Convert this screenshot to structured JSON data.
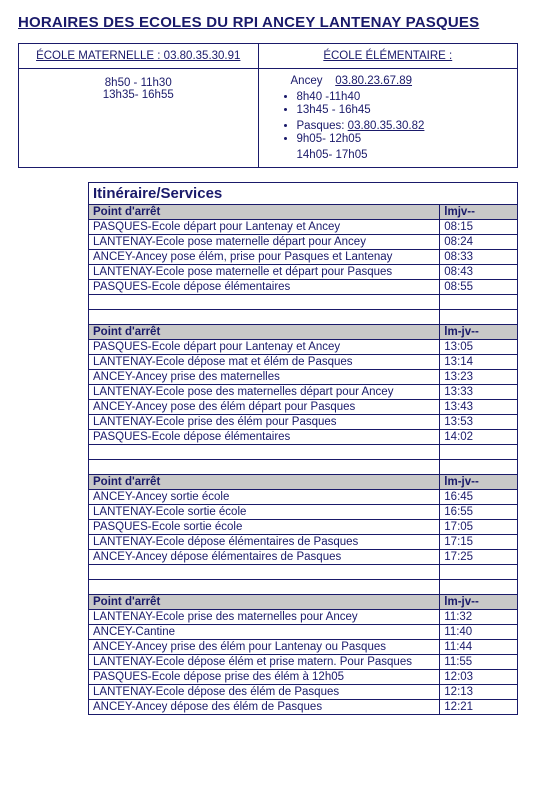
{
  "title": "HORAIRES DES ECOLES DU RPI ANCEY LANTENAY PASQUES",
  "top": {
    "left_header": "ÉCOLE MATERNELLE : 03.80.35.30.91",
    "right_header": "ÉCOLE ÉLÉMENTAIRE :",
    "left_line1": "8h50 - 11h30",
    "left_line2": "13h35- 16h55",
    "ancey_label": "Ancey",
    "ancey_phone": "03.80.23.67.89",
    "ancey_time1": "8h40 -11h40",
    "ancey_time2": "13h45 - 16h45",
    "pasques_label": "Pasques:",
    "pasques_phone": "03.80.35.30.82",
    "pasques_time1": "9h05- 12h05",
    "pasques_time2": "14h05- 17h05"
  },
  "itin": {
    "title": "Itinéraire/Services",
    "header_stop": "Point d'arrêt",
    "header_days": "lmjv--",
    "header_days2": "lm-jv--",
    "blocks": [
      {
        "days_key": "header_days",
        "rows": [
          {
            "stop": "PASQUES-Ecole départ pour Lantenay et Ancey",
            "time": "08:15"
          },
          {
            "stop": "LANTENAY-Ecole pose maternelle départ pour Ancey",
            "time": "08:24"
          },
          {
            "stop": "ANCEY-Ancey pose élém, prise pour Pasques et Lantenay",
            "time": "08:33"
          },
          {
            "stop": "LANTENAY-Ecole  pose maternelle et départ pour Pasques",
            "time": "08:43"
          },
          {
            "stop": "PASQUES-Ecole  dépose élémentaires",
            "time": "08:55"
          }
        ]
      },
      {
        "days_key": "header_days2",
        "rows": [
          {
            "stop": "PASQUES-Ecole  départ pour Lantenay et Ancey",
            "time": "13:05"
          },
          {
            "stop": "LANTENAY-Ecole dépose mat et élém de Pasques",
            "time": "13:14"
          },
          {
            "stop": "ANCEY-Ancey prise des maternelles",
            "time": "13:23"
          },
          {
            "stop": "LANTENAY-Ecole  pose des maternelles départ pour Ancey",
            "time": "13:33"
          },
          {
            "stop": "ANCEY-Ancey pose des élém départ pour Pasques",
            "time": "13:43"
          },
          {
            "stop": "LANTENAY-Ecole  prise des élém pour Pasques",
            "time": "13:53"
          },
          {
            "stop": "PASQUES-Ecole dépose élémentaires",
            "time": "14:02"
          }
        ]
      },
      {
        "days_key": "header_days2",
        "rows": [
          {
            "stop": "ANCEY-Ancey sortie école",
            "time": "16:45"
          },
          {
            "stop": "LANTENAY-Ecole sortie école",
            "time": "16:55"
          },
          {
            "stop": "PASQUES-Ecole sortie école",
            "time": "17:05"
          },
          {
            "stop": "LANTENAY-Ecole  dépose élémentaires de Pasques",
            "time": "17:15"
          },
          {
            "stop": "ANCEY-Ancey  dépose élémentaires de Pasques",
            "time": "17:25"
          }
        ]
      },
      {
        "days_key": "header_days2",
        "rows": [
          {
            "stop": "LANTENAY-Ecole prise des maternelles pour Ancey",
            "time": "11:32"
          },
          {
            "stop": "ANCEY-Cantine",
            "time": "11:40"
          },
          {
            "stop": "ANCEY-Ancey prise des élém pour Lantenay ou Pasques",
            "time": "11:44"
          },
          {
            "stop": "LANTENAY-Ecole dépose élém et prise matern. Pour Pasques",
            "time": "11:55"
          },
          {
            "stop": "PASQUES-Ecole dépose prise des élém à 12h05",
            "time": "12:03"
          },
          {
            "stop": "LANTENAY-Ecole dépose des élém de Pasques",
            "time": "12:13"
          },
          {
            "stop": "ANCEY-Ancey dépose des élém de Pasques",
            "time": "12:21"
          }
        ]
      }
    ]
  },
  "colors": {
    "text": "#1a1a6a",
    "section_bg": "#c8c8c8",
    "border": "#1a1a6a",
    "background": "#ffffff"
  }
}
